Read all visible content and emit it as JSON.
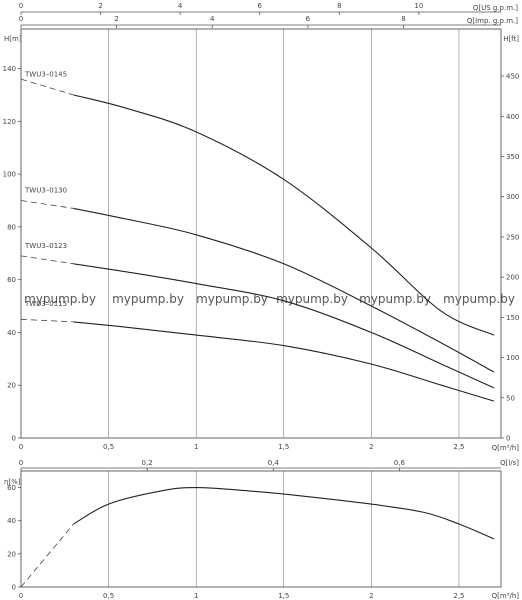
{
  "top_axes": {
    "us_gpm": {
      "label": "Q[US g.p.m.]",
      "ticks": [
        "0",
        "2",
        "4",
        "6",
        "8",
        "10"
      ],
      "range": [
        0,
        12.064
      ]
    },
    "imp_gpm": {
      "label": "Q[Imp. g.p.m.]",
      "ticks": [
        "0",
        "2",
        "4",
        "6",
        "8"
      ],
      "range": [
        0,
        10.04
      ]
    }
  },
  "watermark": "mypump.by",
  "chart_data": [
    {
      "type": "line",
      "title": "",
      "xlabel": "Q[m³/h]",
      "ylabel": "H[m]",
      "ylabel_right": "H[ft]",
      "xlim": [
        0,
        2.74
      ],
      "ylim": [
        0,
        155
      ],
      "x_ticks": [
        "0",
        "0,5",
        "1",
        "1,5",
        "2",
        "2,5"
      ],
      "y_ticks": [
        "0",
        "20",
        "40",
        "60",
        "80",
        "100",
        "120",
        "140"
      ],
      "y_ticks_right": [
        "0",
        "50",
        "100",
        "150",
        "200",
        "250",
        "300",
        "350",
        "400",
        "450"
      ],
      "grid": true,
      "series": [
        {
          "name": "TWU3–0145",
          "x": [
            0.3,
            0.6,
            1.0,
            1.5,
            2.0,
            2.4,
            2.7
          ],
          "y": [
            130,
            125,
            116,
            98,
            72,
            48,
            39
          ]
        },
        {
          "name": "TWU3–0130",
          "x": [
            0.3,
            0.6,
            1.0,
            1.5,
            2.0,
            2.4,
            2.7
          ],
          "y": [
            87,
            83,
            77,
            66,
            50,
            36,
            25
          ]
        },
        {
          "name": "TWU3–0123",
          "x": [
            0.3,
            0.6,
            1.0,
            1.5,
            2.0,
            2.4,
            2.7
          ],
          "y": [
            66,
            63,
            58.5,
            52,
            40,
            28,
            19
          ]
        },
        {
          "name": "TWU3–0115",
          "x": [
            0.3,
            0.6,
            1.0,
            1.5,
            2.0,
            2.4,
            2.7
          ],
          "y": [
            44,
            42,
            39,
            35,
            28,
            20,
            14
          ]
        }
      ],
      "dashed_extrapolation": [
        {
          "x": [
            0,
            0.3
          ],
          "y": [
            136,
            130
          ]
        },
        {
          "x": [
            0,
            0.3
          ],
          "y": [
            90,
            87
          ]
        },
        {
          "x": [
            0,
            0.3
          ],
          "y": [
            69,
            66
          ]
        },
        {
          "x": [
            0,
            0.3
          ],
          "y": [
            45,
            44
          ]
        }
      ]
    },
    {
      "type": "line",
      "title": "",
      "xlabel": "Q[m³/h]",
      "ylabel": "η[%]",
      "secondary_xlabel": "Q[l/s]",
      "xlim": [
        0,
        2.74
      ],
      "ylim": [
        0,
        70
      ],
      "x_ticks": [
        "0",
        "0,5",
        "1",
        "1,5",
        "2",
        "2,5"
      ],
      "x_ticks_top": [
        "0",
        "0,2",
        "0,4",
        "0,6"
      ],
      "y_ticks": [
        "0",
        "20",
        "40",
        "60"
      ],
      "grid": true,
      "series": [
        {
          "x": [
            0.3,
            0.5,
            0.8,
            1.0,
            1.3,
            1.6,
            2.0,
            2.3,
            2.5,
            2.7
          ],
          "y": [
            38,
            50,
            58,
            60,
            58,
            55,
            50,
            45,
            38,
            29
          ]
        }
      ],
      "dashed_extrapolation": [
        {
          "x": [
            0,
            0.3
          ],
          "y": [
            0,
            38
          ]
        }
      ]
    }
  ]
}
